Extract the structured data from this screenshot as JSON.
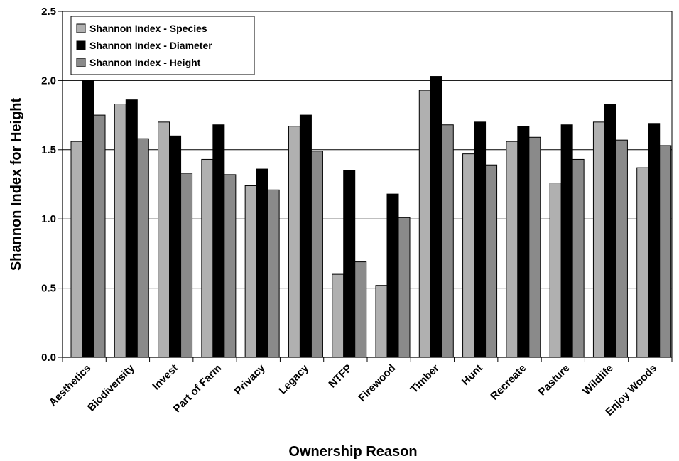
{
  "chart_data": {
    "type": "bar",
    "title": "",
    "xlabel": "Ownership Reason",
    "ylabel": "Shannon Index for Height",
    "ylim": [
      0,
      2.5
    ],
    "yticks": [
      "0.0",
      "0.5",
      "1.0",
      "1.5",
      "2.0",
      "2.5"
    ],
    "grid": "horizontal",
    "legend_position": "top-left",
    "categories": [
      "Aesthetics",
      "Biodiversity",
      "Invest",
      "Part of Farm",
      "Privacy",
      "Legacy",
      "NTFP",
      "Firewood",
      "Timber",
      "Hunt",
      "Recreate",
      "Pasture",
      "Wildlife",
      "Enjoy Woods"
    ],
    "series": [
      {
        "name": "Shannon Index - Species",
        "color": "#b0b0b0",
        "values": [
          1.56,
          1.83,
          1.7,
          1.43,
          1.24,
          1.67,
          0.6,
          0.52,
          1.93,
          1.47,
          1.56,
          1.26,
          1.7,
          1.37
        ]
      },
      {
        "name": "Shannon Index - Diameter",
        "color": "#000000",
        "values": [
          2.0,
          1.86,
          1.6,
          1.68,
          1.36,
          1.75,
          1.35,
          1.18,
          2.03,
          1.7,
          1.67,
          1.68,
          1.83,
          1.69
        ]
      },
      {
        "name": "Shannon Index - Height",
        "color": "#8a8a8a",
        "values": [
          1.75,
          1.58,
          1.33,
          1.32,
          1.21,
          1.49,
          0.69,
          1.01,
          1.68,
          1.39,
          1.59,
          1.43,
          1.57,
          1.53
        ]
      }
    ]
  }
}
